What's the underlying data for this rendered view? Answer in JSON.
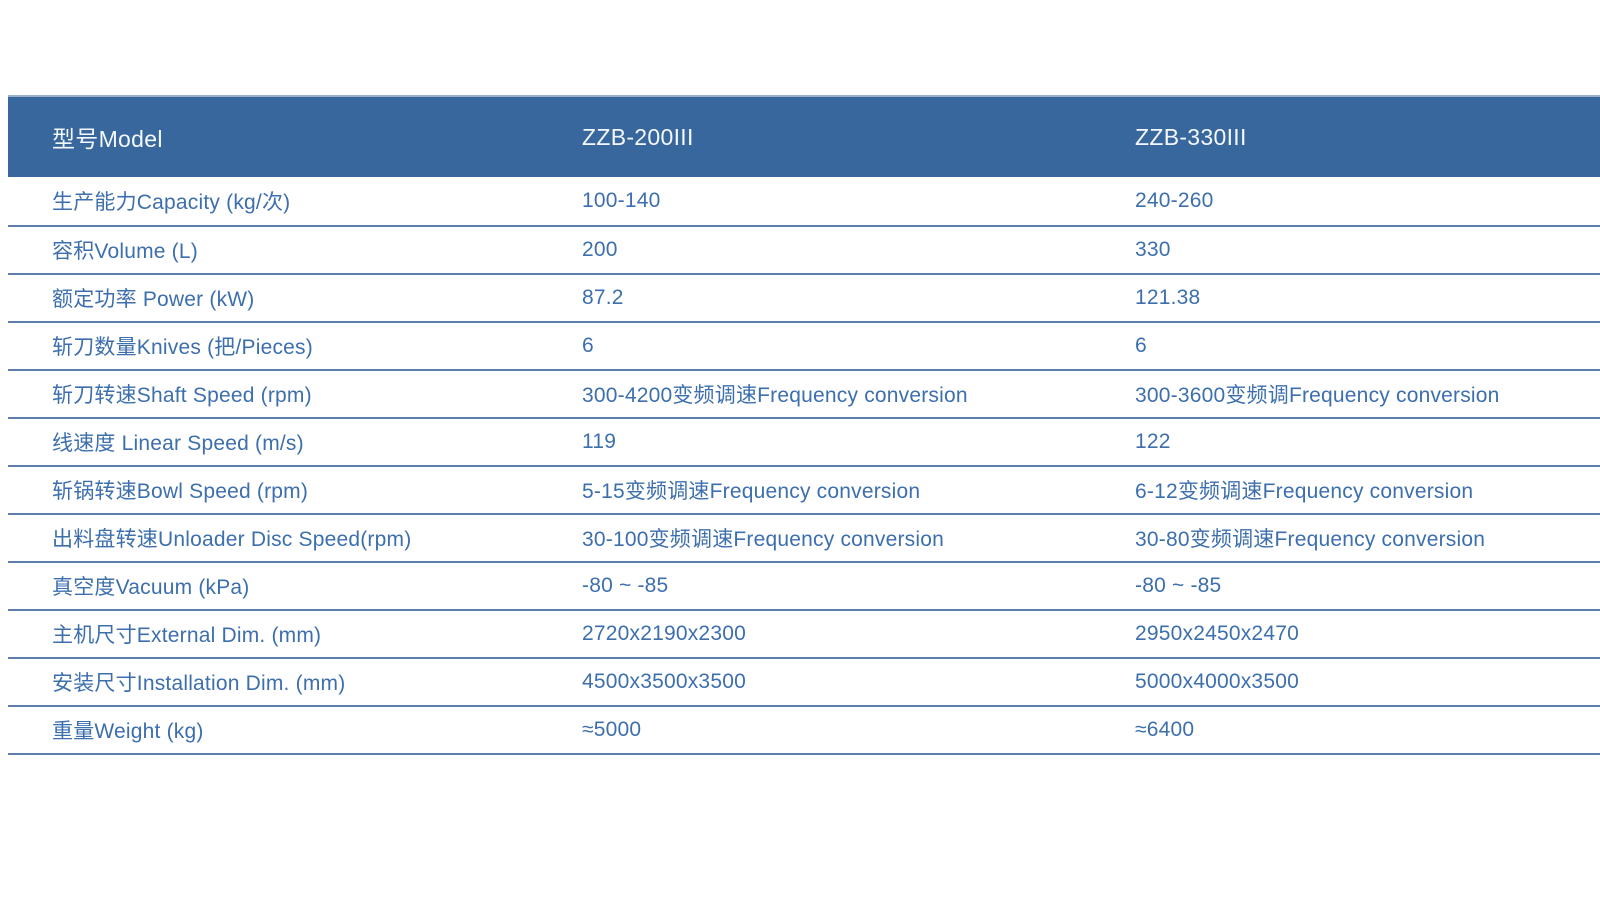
{
  "colors": {
    "header_bg": "#38679E",
    "header_text": "#F4F8FC",
    "header_top_edge": "#9AAFCC",
    "body_text": "#3D6FAD",
    "divider": "#5C80A9",
    "page_bg": "#FFFFFF"
  },
  "table": {
    "header": {
      "model_label": "型号Model",
      "model_1": "ZZB-200III",
      "model_2": "ZZB-330III"
    },
    "rows": [
      {
        "label": "生产能力Capacity (kg/次)",
        "zzb200": "100-140",
        "zzb330": "240-260"
      },
      {
        "label": "容积Volume (L)",
        "zzb200": "200",
        "zzb330": "330"
      },
      {
        "label": "额定功率 Power (kW)",
        "zzb200": "87.2",
        "zzb330": "121.38"
      },
      {
        "label": "斩刀数量Knives (把/Pieces)",
        "zzb200": "6",
        "zzb330": "6"
      },
      {
        "label": "斩刀转速Shaft Speed (rpm)",
        "zzb200": "300-4200变频调速Frequency conversion",
        "zzb330": "300-3600变频调Frequency conversion"
      },
      {
        "label": "线速度 Linear Speed (m/s)",
        "zzb200": "119",
        "zzb330": "122"
      },
      {
        "label": "斩锅转速Bowl Speed (rpm)",
        "zzb200": "5-15变频调速Frequency conversion",
        "zzb330": "6-12变频调速Frequency conversion"
      },
      {
        "label": "出料盘转速Unloader Disc Speed(rpm)",
        "zzb200": "30-100变频调速Frequency conversion",
        "zzb330": "30-80变频调速Frequency conversion"
      },
      {
        "label": "真空度Vacuum (kPa)",
        "zzb200": "-80 ~ -85",
        "zzb330": "-80 ~ -85"
      },
      {
        "label": "主机尺寸External Dim. (mm)",
        "zzb200": "2720x2190x2300",
        "zzb330": "2950x2450x2470"
      },
      {
        "label": "安装尺寸Installation Dim. (mm)",
        "zzb200": "4500x3500x3500",
        "zzb330": "5000x4000x3500"
      },
      {
        "label": "重量Weight (kg)",
        "zzb200": "≈5000",
        "zzb330": "≈6400"
      }
    ]
  }
}
